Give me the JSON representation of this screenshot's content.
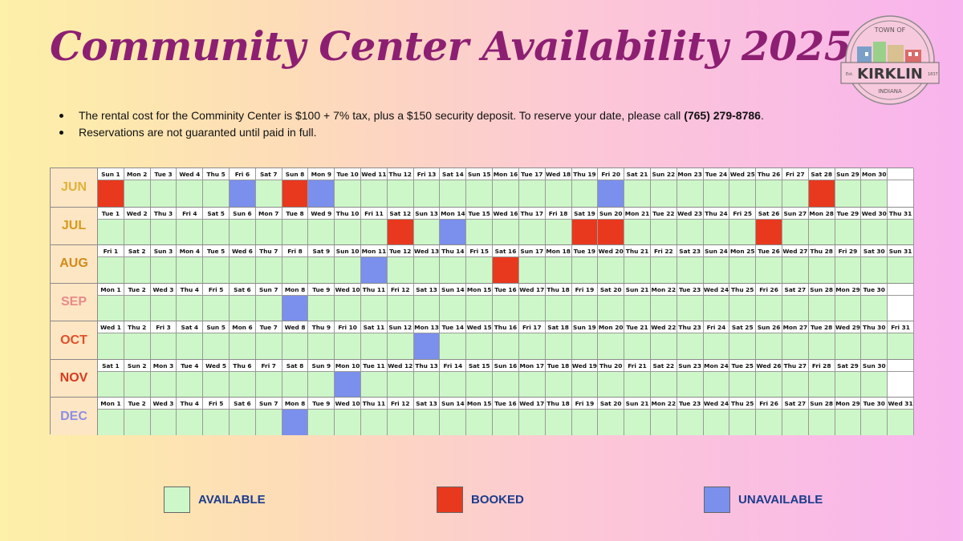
{
  "title": "Community Center Availability 2025",
  "logo": {
    "top_text": "TOWN OF",
    "name": "KIRKLIN",
    "bottom_text": "INDIANA",
    "est_left": "Est.",
    "est_right": "1837"
  },
  "info": {
    "line1_text": "The rental cost for the Comminity Center is $100 + 7% tax, plus a $150 security deposit. To reserve your date, please call ",
    "line1_phone": "(765) 279-8786",
    "line1_end": ".",
    "line2": "Reservations are not guaranted until paid in full."
  },
  "months": [
    {
      "name": "JUN",
      "color": "#e0b23a",
      "first_dow": 0,
      "days": 30,
      "booked": [
        1,
        8,
        28
      ],
      "unavailable": [
        6,
        9,
        20
      ]
    },
    {
      "name": "JUL",
      "color": "#d59a1e",
      "first_dow": 2,
      "days": 31,
      "booked": [
        12,
        19,
        20,
        26
      ],
      "unavailable": [
        14
      ]
    },
    {
      "name": "AUG",
      "color": "#d28a1a",
      "first_dow": 5,
      "days": 31,
      "booked": [
        16
      ],
      "unavailable": [
        11
      ]
    },
    {
      "name": "SEP",
      "color": "#e88a8a",
      "first_dow": 1,
      "days": 30,
      "booked": [],
      "unavailable": [
        8
      ]
    },
    {
      "name": "OCT",
      "color": "#e0502a",
      "first_dow": 3,
      "days": 31,
      "booked": [],
      "unavailable": [
        13
      ]
    },
    {
      "name": "NOV",
      "color": "#d83a20",
      "first_dow": 6,
      "days": 30,
      "booked": [],
      "unavailable": [
        10
      ]
    },
    {
      "name": "DEC",
      "color": "#8d8ee8",
      "first_dow": 1,
      "days": 31,
      "booked": [],
      "unavailable": [
        8
      ]
    }
  ],
  "weekdays": [
    "Sun",
    "Mon",
    "Tue",
    "Wed",
    "Thu",
    "Fri",
    "Sat"
  ],
  "legend": {
    "available": "AVAILABLE",
    "booked": "BOOKED",
    "unavailable": "UNAVAILABLE"
  },
  "colors": {
    "available": "#cdf7c8",
    "booked": "#e8391f",
    "unavailable": "#7b8fec",
    "title": "#8d1f72"
  }
}
